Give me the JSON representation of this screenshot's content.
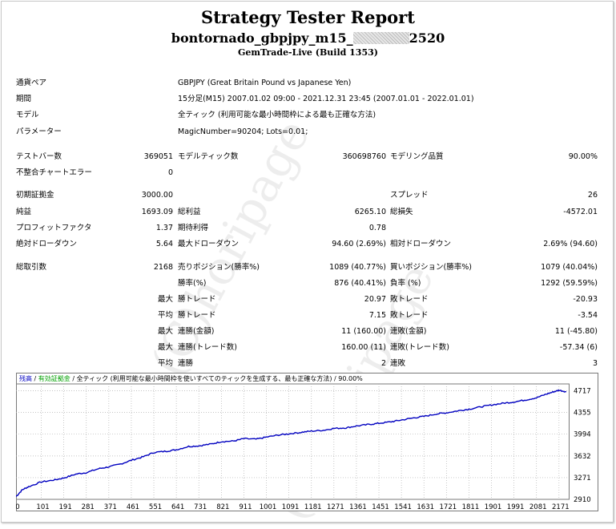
{
  "header": {
    "title": "Strategy Tester Report",
    "ea_prefix": "bontornado_gbpjpy_m15_",
    "ea_suffix": "2520",
    "server": "GemTrade-Live (Build 1353)"
  },
  "info": [
    {
      "label": "通貨ペア",
      "value": "GBPJPY (Great Britain Pound vs Japanese Yen)"
    },
    {
      "label": "期間",
      "value": "15分足(M15) 2007.01.02 09:00 - 2021.12.31 23:45 (2007.01.01 - 2022.01.01)"
    },
    {
      "label": "モデル",
      "value": "全ティック (利用可能な最小時間枠による最も正確な方法)"
    },
    {
      "label": "パラメーター",
      "value": "MagicNumber=90204; Lots=0.01;"
    }
  ],
  "stats": [
    {
      "y": 190,
      "c": [
        {
          "t": "テストバー数",
          "x": 20
        },
        {
          "t": "369051",
          "x": 216,
          "r": true
        },
        {
          "t": "モデルティック数",
          "x": 222
        },
        {
          "t": "360698760",
          "x": 482,
          "r": true
        },
        {
          "t": "モデリング品質",
          "x": 487
        },
        {
          "t": "90.00%",
          "x": 746,
          "r": true
        }
      ]
    },
    {
      "y": 210,
      "c": [
        {
          "t": "不整合チャートエラー",
          "x": 20
        },
        {
          "t": "0",
          "x": 216,
          "r": true
        }
      ]
    },
    {
      "y": 238,
      "c": [
        {
          "t": "初期証拠金",
          "x": 20
        },
        {
          "t": "3000.00",
          "x": 216,
          "r": true
        },
        {
          "t": "スプレッド",
          "x": 487
        },
        {
          "t": "26",
          "x": 746,
          "r": true
        }
      ]
    },
    {
      "y": 259,
      "c": [
        {
          "t": "純益",
          "x": 20
        },
        {
          "t": "1693.09",
          "x": 216,
          "r": true
        },
        {
          "t": "総利益",
          "x": 222
        },
        {
          "t": "6265.10",
          "x": 482,
          "r": true
        },
        {
          "t": "総損失",
          "x": 487
        },
        {
          "t": "-4572.01",
          "x": 746,
          "r": true
        }
      ]
    },
    {
      "y": 279,
      "c": [
        {
          "t": "プロフィットファクタ",
          "x": 20
        },
        {
          "t": "1.37",
          "x": 216,
          "r": true
        },
        {
          "t": "期待利得",
          "x": 222
        },
        {
          "t": "0.78",
          "x": 482,
          "r": true
        }
      ]
    },
    {
      "y": 299,
      "c": [
        {
          "t": "絶対ドローダウン",
          "x": 20
        },
        {
          "t": "5.64",
          "x": 216,
          "r": true
        },
        {
          "t": "最大ドローダウン",
          "x": 222
        },
        {
          "t": "94.60 (2.69%)",
          "x": 482,
          "r": true
        },
        {
          "t": "相対ドローダウン",
          "x": 487
        },
        {
          "t": "2.69% (94.60)",
          "x": 746,
          "r": true
        }
      ]
    },
    {
      "y": 328,
      "c": [
        {
          "t": "総取引数",
          "x": 20
        },
        {
          "t": "2168",
          "x": 216,
          "r": true
        },
        {
          "t": "売りポジション(勝率%)",
          "x": 222
        },
        {
          "t": "1089 (40.77%)",
          "x": 482,
          "r": true
        },
        {
          "t": "買いポジション(勝率%)",
          "x": 487
        },
        {
          "t": "1079 (40.04%)",
          "x": 746,
          "r": true
        }
      ]
    },
    {
      "y": 348,
      "c": [
        {
          "t": "勝率(%)",
          "x": 222
        },
        {
          "t": "876 (40.41%)",
          "x": 482,
          "r": true
        },
        {
          "t": "負率 (%)",
          "x": 487
        },
        {
          "t": "1292 (59.59%)",
          "x": 746,
          "r": true
        }
      ]
    },
    {
      "y": 368,
      "c": [
        {
          "t": "最大",
          "x": 216,
          "r": true
        },
        {
          "t": "勝トレード",
          "x": 222
        },
        {
          "t": "20.97",
          "x": 482,
          "r": true
        },
        {
          "t": "敗トレード",
          "x": 487
        },
        {
          "t": "-20.93",
          "x": 746,
          "r": true
        }
      ]
    },
    {
      "y": 388,
      "c": [
        {
          "t": "平均",
          "x": 216,
          "r": true
        },
        {
          "t": "勝トレード",
          "x": 222
        },
        {
          "t": "7.15",
          "x": 482,
          "r": true
        },
        {
          "t": "敗トレード",
          "x": 487
        },
        {
          "t": "-3.54",
          "x": 746,
          "r": true
        }
      ]
    },
    {
      "y": 408,
      "c": [
        {
          "t": "最大",
          "x": 216,
          "r": true
        },
        {
          "t": "連勝(金額)",
          "x": 222
        },
        {
          "t": "11 (160.00)",
          "x": 482,
          "r": true
        },
        {
          "t": "連敗(金額)",
          "x": 487
        },
        {
          "t": "11 (-45.80)",
          "x": 746,
          "r": true
        }
      ]
    },
    {
      "y": 428,
      "c": [
        {
          "t": "最大",
          "x": 216,
          "r": true
        },
        {
          "t": "連勝(トレード数)",
          "x": 222
        },
        {
          "t": "160.00 (11)",
          "x": 482,
          "r": true
        },
        {
          "t": "連敗(トレード数)",
          "x": 487
        },
        {
          "t": "-57.34 (6)",
          "x": 746,
          "r": true
        }
      ]
    },
    {
      "y": 448,
      "c": [
        {
          "t": "平均",
          "x": 216,
          "r": true
        },
        {
          "t": "連勝",
          "x": 222
        },
        {
          "t": "2",
          "x": 482,
          "r": true
        },
        {
          "t": "連敗",
          "x": 487
        },
        {
          "t": "3",
          "x": 746,
          "r": true
        }
      ]
    }
  ],
  "watermark": "(C)horipage",
  "legend": [
    {
      "text": "残高",
      "color": "#0000c0"
    },
    {
      "text": " / ",
      "color": "#000000"
    },
    {
      "text": "有効証拠金",
      "color": "#00a000"
    },
    {
      "text": " / 全ティック (利用可能な最小時間枠を使いすべてのティックを生成する、最も正確な方法) / 90.00%",
      "color": "#000000"
    }
  ],
  "chart_data": {
    "type": "line",
    "title": "",
    "xlabel": "",
    "ylabel": "",
    "x_ticks": [
      0,
      101,
      191,
      281,
      371,
      461,
      551,
      641,
      731,
      821,
      911,
      1001,
      1091,
      1181,
      1271,
      1361,
      1451,
      1541,
      1631,
      1721,
      1811,
      1901,
      1991,
      2081,
      2171
    ],
    "y_ticks": [
      2910,
      3271,
      3632,
      3994,
      4355,
      4717
    ],
    "xlim": [
      0,
      2210
    ],
    "ylim": [
      2910,
      4830
    ],
    "grid": true,
    "line_color": "#0000c0",
    "series": [
      {
        "values": [
          [
            0,
            2955
          ],
          [
            25,
            3070
          ],
          [
            50,
            3120
          ],
          [
            101,
            3200
          ],
          [
            150,
            3230
          ],
          [
            191,
            3265
          ],
          [
            240,
            3330
          ],
          [
            281,
            3355
          ],
          [
            330,
            3420
          ],
          [
            371,
            3450
          ],
          [
            420,
            3500
          ],
          [
            461,
            3560
          ],
          [
            510,
            3620
          ],
          [
            551,
            3690
          ],
          [
            600,
            3710
          ],
          [
            641,
            3735
          ],
          [
            690,
            3790
          ],
          [
            731,
            3800
          ],
          [
            780,
            3830
          ],
          [
            821,
            3870
          ],
          [
            870,
            3880
          ],
          [
            911,
            3920
          ],
          [
            960,
            3910
          ],
          [
            1001,
            3945
          ],
          [
            1050,
            3980
          ],
          [
            1091,
            4000
          ],
          [
            1140,
            4025
          ],
          [
            1181,
            4045
          ],
          [
            1230,
            4060
          ],
          [
            1271,
            4090
          ],
          [
            1320,
            4100
          ],
          [
            1361,
            4130
          ],
          [
            1410,
            4155
          ],
          [
            1451,
            4175
          ],
          [
            1500,
            4200
          ],
          [
            1541,
            4230
          ],
          [
            1590,
            4265
          ],
          [
            1631,
            4290
          ],
          [
            1680,
            4330
          ],
          [
            1721,
            4350
          ],
          [
            1770,
            4385
          ],
          [
            1811,
            4410
          ],
          [
            1860,
            4450
          ],
          [
            1901,
            4480
          ],
          [
            1950,
            4510
          ],
          [
            1991,
            4530
          ],
          [
            2040,
            4565
          ],
          [
            2081,
            4600
          ],
          [
            2120,
            4660
          ],
          [
            2150,
            4700
          ],
          [
            2171,
            4725
          ],
          [
            2200,
            4700
          ]
        ]
      }
    ]
  }
}
